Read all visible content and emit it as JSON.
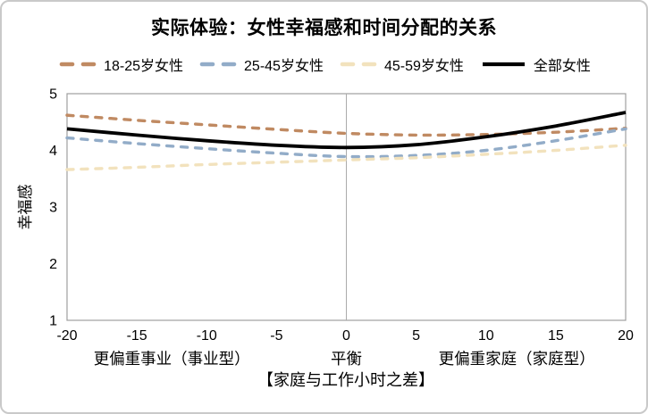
{
  "title": "实际体验：女性幸福感和时间分配的关系",
  "chart_data": {
    "type": "line",
    "title": "实际体验：女性幸福感和时间分配的关系",
    "xlabel": "【家庭与工作小时之差】",
    "ylabel": "幸福感",
    "xlim": [
      -20,
      20
    ],
    "ylim": [
      1,
      5
    ],
    "x_ticks": [
      "-20",
      "-15",
      "-10",
      "-5",
      "0",
      "5",
      "10",
      "15",
      "20"
    ],
    "x_tick_values": [
      -20,
      -15,
      -10,
      -5,
      0,
      5,
      10,
      15,
      20
    ],
    "y_ticks": [
      "5",
      "4",
      "3",
      "2",
      "1"
    ],
    "y_tick_values": [
      5,
      4,
      3,
      2,
      1
    ],
    "grid": false,
    "legend_position": "top",
    "reference_line_x": 0,
    "x": [
      -20,
      -15,
      -10,
      -5,
      0,
      5,
      10,
      15,
      20
    ],
    "series": [
      {
        "name": "18-25岁女性",
        "color": "#C08A62",
        "style": "dashed",
        "values": [
          4.62,
          4.53,
          4.45,
          4.37,
          4.3,
          4.27,
          4.28,
          4.32,
          4.39
        ]
      },
      {
        "name": "25-45岁女性",
        "color": "#92ACC8",
        "style": "dashed",
        "values": [
          4.22,
          4.12,
          4.03,
          3.95,
          3.89,
          3.91,
          4.0,
          4.17,
          4.38
        ]
      },
      {
        "name": "45-59岁女性",
        "color": "#F2E2BD",
        "style": "dashed",
        "values": [
          3.66,
          3.7,
          3.75,
          3.79,
          3.83,
          3.87,
          3.93,
          4.0,
          4.09
        ]
      },
      {
        "name": "全部女性",
        "color": "#000000",
        "style": "solid",
        "values": [
          4.38,
          4.27,
          4.17,
          4.09,
          4.05,
          4.1,
          4.24,
          4.43,
          4.67
        ]
      }
    ],
    "region_labels": [
      {
        "label": "更偏重事业（事业型）",
        "x": -12.5
      },
      {
        "label": "平衡",
        "x": 0
      },
      {
        "label": "更偏重家庭（家庭型）",
        "x": 12.2
      }
    ]
  },
  "colors": {
    "plot_border": "#9f9f9f",
    "reference_line": "#ababab",
    "text": "#000000",
    "frame_border": "#c9c9c9"
  }
}
